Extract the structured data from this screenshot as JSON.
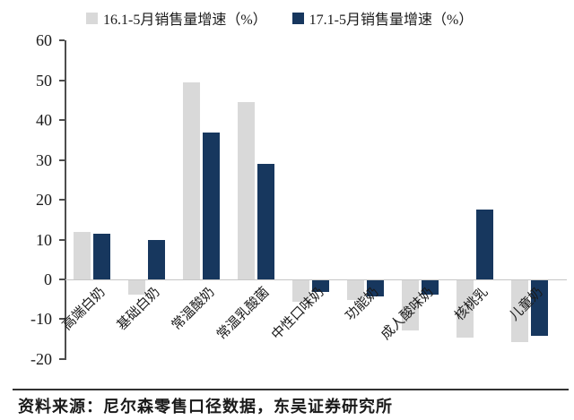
{
  "chart_data": {
    "type": "bar",
    "categories": [
      "高端白奶",
      "基础白奶",
      "常温酸奶",
      "常温乳酸菌",
      "中性口味奶",
      "功能奶",
      "成人酸味奶",
      "核桃乳",
      "儿童奶"
    ],
    "series": [
      {
        "name": "16.1-5月销售量增速（%）",
        "color": "#d9d9d9",
        "values": [
          12,
          -3.5,
          49.5,
          44.5,
          -5.5,
          -5,
          -12.5,
          -14.5,
          -15.5
        ]
      },
      {
        "name": "17.1-5月销售量增速（%）",
        "color": "#17375e",
        "values": [
          11.5,
          10,
          37,
          29,
          -3,
          -4,
          -3.5,
          17.5,
          -14
        ]
      }
    ],
    "title": "",
    "xlabel": "",
    "ylabel": "",
    "ylim": [
      -20,
      60
    ],
    "ytick_step": 10,
    "grid": "off",
    "legend_position": "top",
    "source": "资料来源：尼尔森零售口径数据，东吴证券研究所"
  },
  "colors": {
    "series_2016": "#d9d9d9",
    "series_2017": "#17375e",
    "axis": "#4d4d4d",
    "zero_line": "#c6c6c6",
    "text": "#1a1a1a"
  }
}
